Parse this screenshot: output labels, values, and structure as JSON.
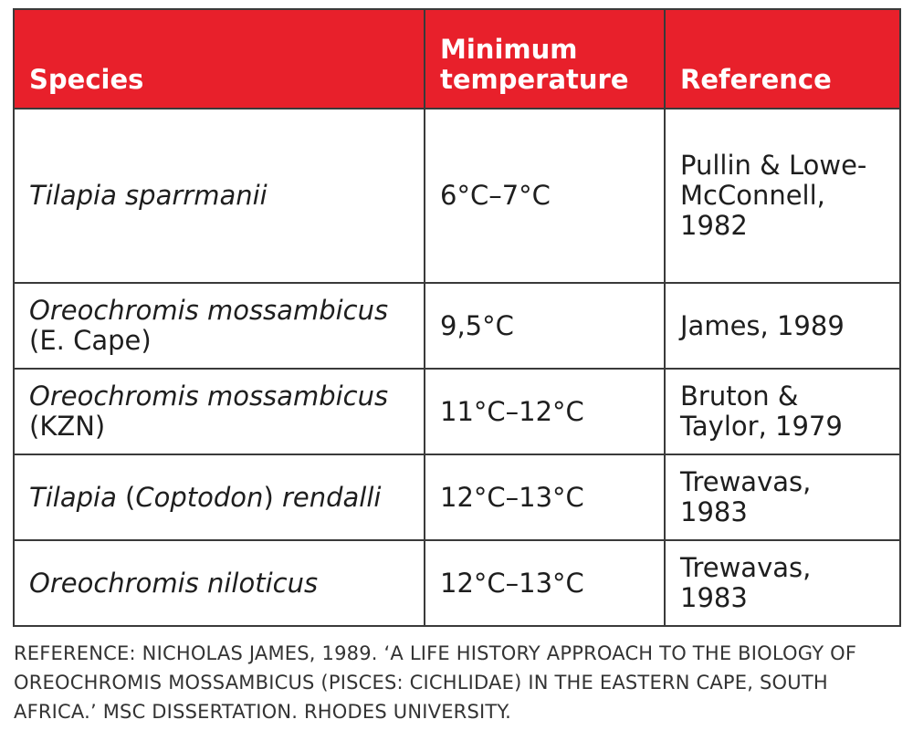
{
  "table": {
    "headers": [
      "Species",
      "Minimum temperature",
      "Reference"
    ],
    "rows": [
      {
        "species_italic": "Tilapia sparrmanii",
        "species_rest": "",
        "temperature": "6°C–7°C",
        "reference": "Pullin & Lowe-McConnell, 1982"
      },
      {
        "species_italic": "Oreochromis mossambicus",
        "species_rest": " (E. Cape)",
        "temperature": "9,5°C",
        "reference": "James, 1989"
      },
      {
        "species_italic": "Oreochromis mossambicus",
        "species_rest": " (KZN)",
        "temperature": "11°C–12°C",
        "reference": "Bruton & Taylor, 1979"
      },
      {
        "species_italic_a": "Tilapia",
        "species_mid": " (",
        "species_italic_b": "Coptodon",
        "species_mid2": ") ",
        "species_italic_c": "rendalli",
        "temperature": "12°C–13°C",
        "reference": "Trewavas, 1983"
      },
      {
        "species_italic": "Oreochromis niloticus",
        "species_rest": "",
        "temperature": "12°C–13°C",
        "reference": "Trewavas, 1983"
      }
    ]
  },
  "footnote": "REFERENCE: NICHOLAS JAMES, 1989. ‘A LIFE HISTORY APPROACH TO THE BIOLOGY OF OREOCHROMIS MOSSAMBICUS (PISCES: CICHLIDAE) IN THE EASTERN CAPE, SOUTH AFRICA.’ MSC DISSERTATION. RHODES UNIVERSITY.",
  "colors": {
    "header_bg": "#e8202b",
    "header_text": "#ffffff",
    "border": "#3a3a3a"
  }
}
